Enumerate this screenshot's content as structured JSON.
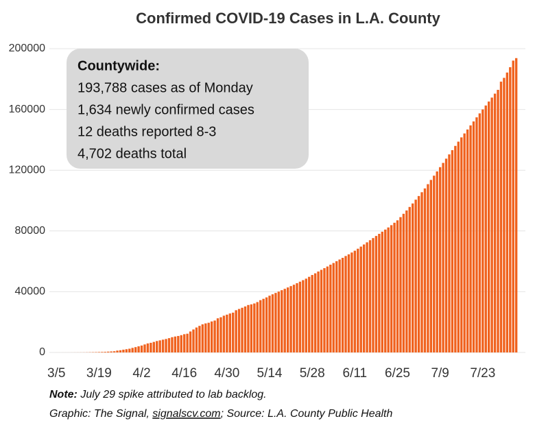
{
  "chart_data": {
    "type": "bar",
    "title": "Confirmed COVID-19 Cases in L.A. County",
    "categories": [
      "3/5",
      null,
      null,
      null,
      null,
      null,
      null,
      null,
      null,
      null,
      null,
      null,
      null,
      null,
      "3/19",
      null,
      null,
      null,
      null,
      null,
      null,
      null,
      null,
      null,
      null,
      null,
      null,
      null,
      "4/2",
      null,
      null,
      null,
      null,
      null,
      null,
      null,
      null,
      null,
      null,
      null,
      null,
      null,
      "4/16",
      null,
      null,
      null,
      null,
      null,
      null,
      null,
      null,
      null,
      null,
      null,
      null,
      null,
      "4/30",
      null,
      null,
      null,
      null,
      null,
      null,
      null,
      null,
      null,
      null,
      null,
      null,
      null,
      "5/14",
      null,
      null,
      null,
      null,
      null,
      null,
      null,
      null,
      null,
      null,
      null,
      null,
      null,
      "5/28",
      null,
      null,
      null,
      null,
      null,
      null,
      null,
      null,
      null,
      null,
      null,
      null,
      null,
      "6/11",
      null,
      null,
      null,
      null,
      null,
      null,
      null,
      null,
      null,
      null,
      null,
      null,
      null,
      "6/25",
      null,
      null,
      null,
      null,
      null,
      null,
      null,
      null,
      null,
      null,
      null,
      null,
      null,
      "7/9",
      null,
      null,
      null,
      null,
      null,
      null,
      null,
      null,
      null,
      null,
      null,
      null,
      null,
      "7/23",
      null,
      null,
      null,
      null,
      null,
      null,
      null,
      null,
      null,
      null,
      null
    ],
    "values": [
      7,
      7,
      11,
      13,
      14,
      20,
      32,
      40,
      53,
      69,
      94,
      144,
      190,
      231,
      292,
      351,
      409,
      536,
      662,
      799,
      1216,
      1465,
      1829,
      2136,
      2474,
      3011,
      3518,
      4045,
      4566,
      5277,
      5955,
      6360,
      6936,
      7530,
      7955,
      8430,
      8873,
      9420,
      10047,
      10496,
      10854,
      11391,
      12021,
      12341,
      13816,
      15140,
      16435,
      17508,
      18517,
      19133,
      19567,
      20417,
      21017,
      22485,
      23182,
      24215,
      24894,
      25662,
      26217,
      27815,
      28644,
      29427,
      30296,
      31241,
      31677,
      32258,
      33180,
      34428,
      35329,
      36259,
      37374,
      38300,
      39200,
      40100,
      41000,
      41900,
      42800,
      43700,
      44600,
      45600,
      46600,
      47600,
      48600,
      49800,
      51000,
      52100,
      53300,
      54400,
      55500,
      56600,
      57800,
      58900,
      60100,
      61200,
      62300,
      63500,
      64600,
      65800,
      67000,
      68300,
      69700,
      71100,
      72500,
      73900,
      75300,
      76700,
      78100,
      79500,
      80900,
      82300,
      83800,
      85400,
      87000,
      89100,
      91300,
      93500,
      95800,
      98100,
      100600,
      103000,
      105500,
      108000,
      110800,
      113600,
      116400,
      119200,
      122000,
      124800,
      127600,
      130400,
      133200,
      136000,
      138800,
      141600,
      144200,
      146800,
      149500,
      152100,
      154800,
      157400,
      160000,
      162600,
      165200,
      167800,
      170400,
      172900,
      178300,
      180800,
      184300,
      187800,
      192154,
      193788
    ],
    "color": "#f0621e",
    "ylim": [
      0,
      200000
    ],
    "yticks": [
      0,
      40000,
      80000,
      120000,
      160000,
      200000
    ],
    "grid": true,
    "info_box": {
      "heading": "Countywide:",
      "lines": [
        "193,788 cases as of Monday",
        "1,634 newly confirmed cases",
        "12 deaths reported 8-3",
        "4,702 deaths total"
      ]
    },
    "footnote": {
      "note_label": "Note:",
      "note": " July 29 spike attributed to lab backlog.",
      "credit": "Graphic: The Signal, ",
      "link": "signalscv.com",
      "source": "; Source: L.A. County Public Health"
    }
  }
}
